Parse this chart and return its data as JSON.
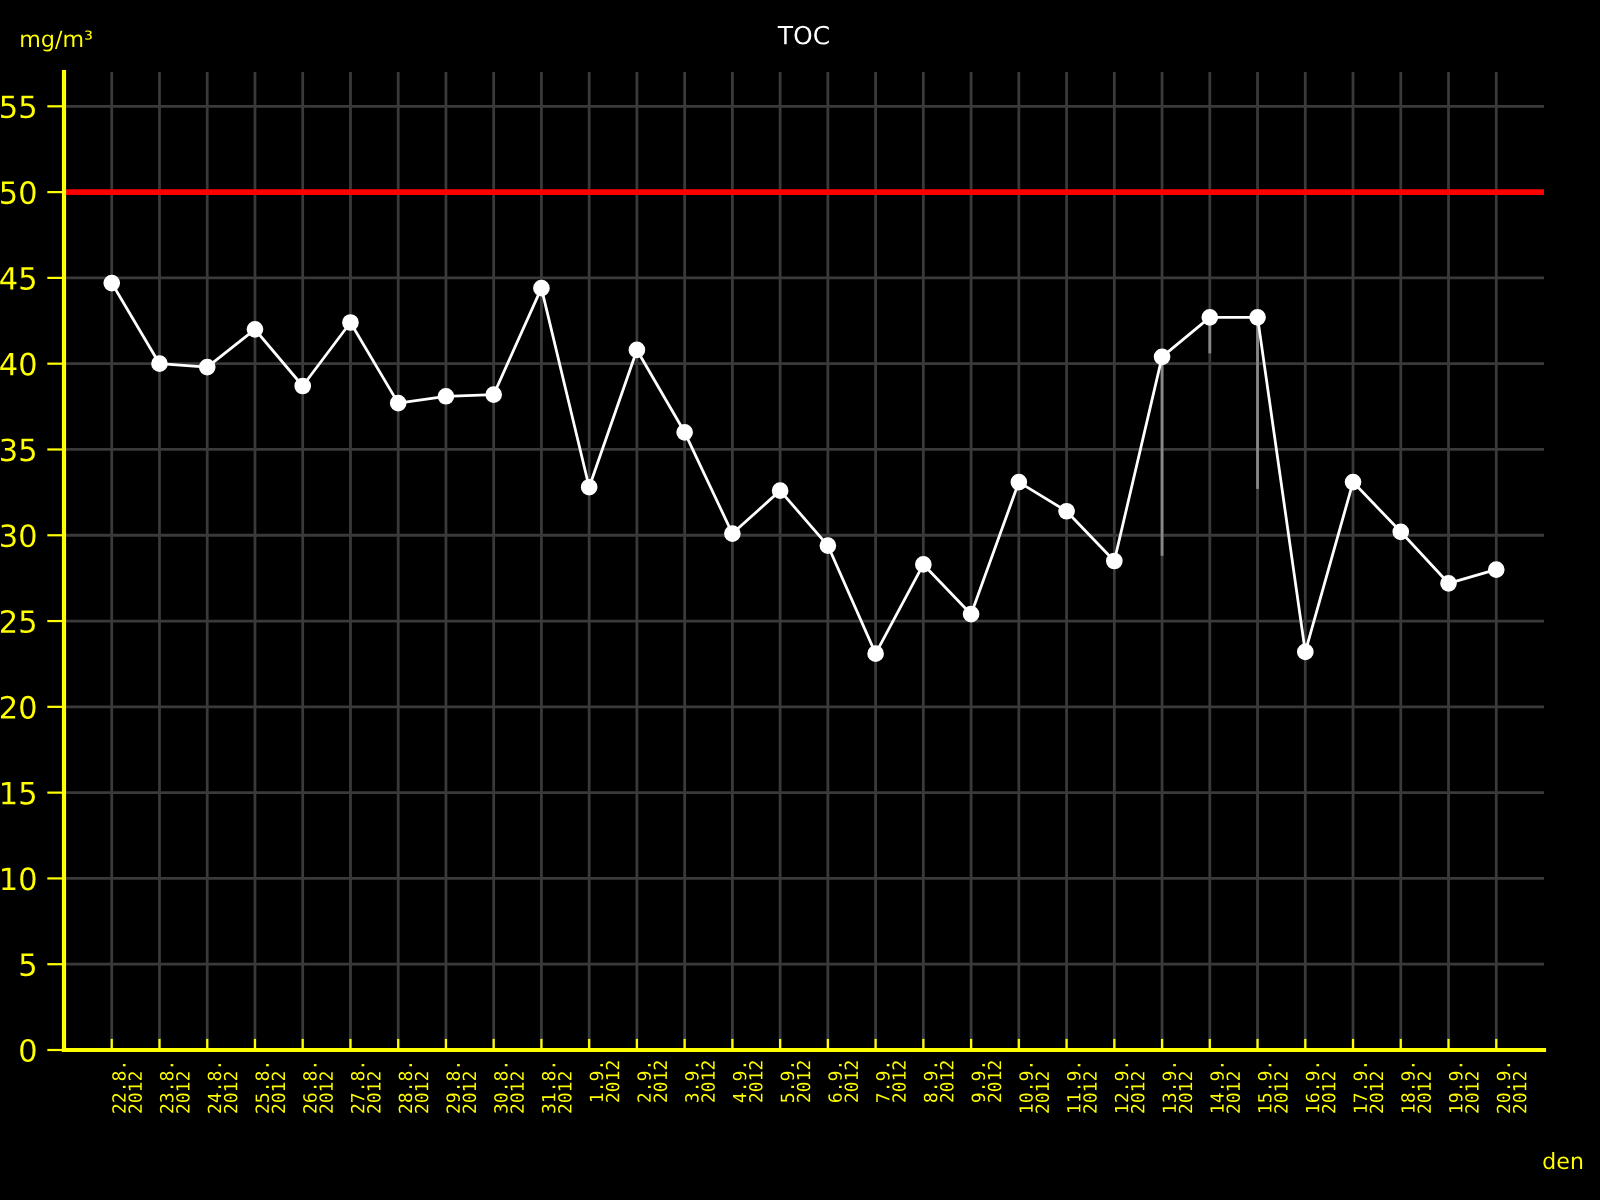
{
  "chart_data": {
    "type": "line",
    "title": "TOC",
    "xlabel": "den",
    "ylabel": "mg/m³",
    "categories": [
      "22.8.\n2012",
      "23.8.\n2012",
      "24.8.\n2012",
      "25.8.\n2012",
      "26.8.\n2012",
      "27.8.\n2012",
      "28.8.\n2012",
      "29.8.\n2012",
      "30.8.\n2012",
      "31.8.\n2012",
      "1.9.\n2012",
      "2.9.\n2012",
      "3.9.\n2012",
      "4.9.\n2012",
      "5.9.\n2012",
      "6.9.\n2012",
      "7.9.\n2012",
      "8.9.\n2012",
      "9.9.\n2012",
      "10.9.\n2012",
      "11.9.\n2012",
      "12.9.\n2012",
      "13.9.\n2012",
      "14.9.\n2012",
      "15.9.\n2012",
      "16.9.\n2012",
      "17.9.\n2012",
      "18.9.\n2012",
      "19.9.\n2012",
      "20.9.\n2012"
    ],
    "series": [
      {
        "color": "#ffffff",
        "values": [
          44.7,
          40.0,
          39.8,
          42.0,
          38.7,
          42.4,
          37.7,
          38.1,
          38.2,
          44.4,
          32.8,
          40.8,
          36.0,
          30.1,
          32.6,
          29.4,
          23.1,
          28.3,
          25.4,
          33.1,
          31.4,
          28.5,
          40.4,
          42.7,
          42.7,
          23.2,
          33.1,
          30.2,
          27.2,
          28.0
        ],
        "errors": [
          null,
          null,
          null,
          null,
          null,
          null,
          null,
          null,
          null,
          null,
          null,
          null,
          null,
          null,
          null,
          null,
          null,
          null,
          null,
          null,
          null,
          null,
          [
            28.8,
            40.4
          ],
          [
            40.6,
            42.7
          ],
          [
            32.7,
            42.7
          ],
          null,
          null,
          null,
          null,
          null
        ]
      }
    ],
    "ylim": [
      0,
      57
    ],
    "yticks": [
      0,
      5,
      10,
      15,
      20,
      25,
      30,
      35,
      40,
      45,
      50,
      55
    ],
    "ref_lines": [
      {
        "axis": "y",
        "value": 50,
        "color": "#ff0000"
      }
    ],
    "grid": true,
    "marker": "circle",
    "line_style": "solid"
  }
}
